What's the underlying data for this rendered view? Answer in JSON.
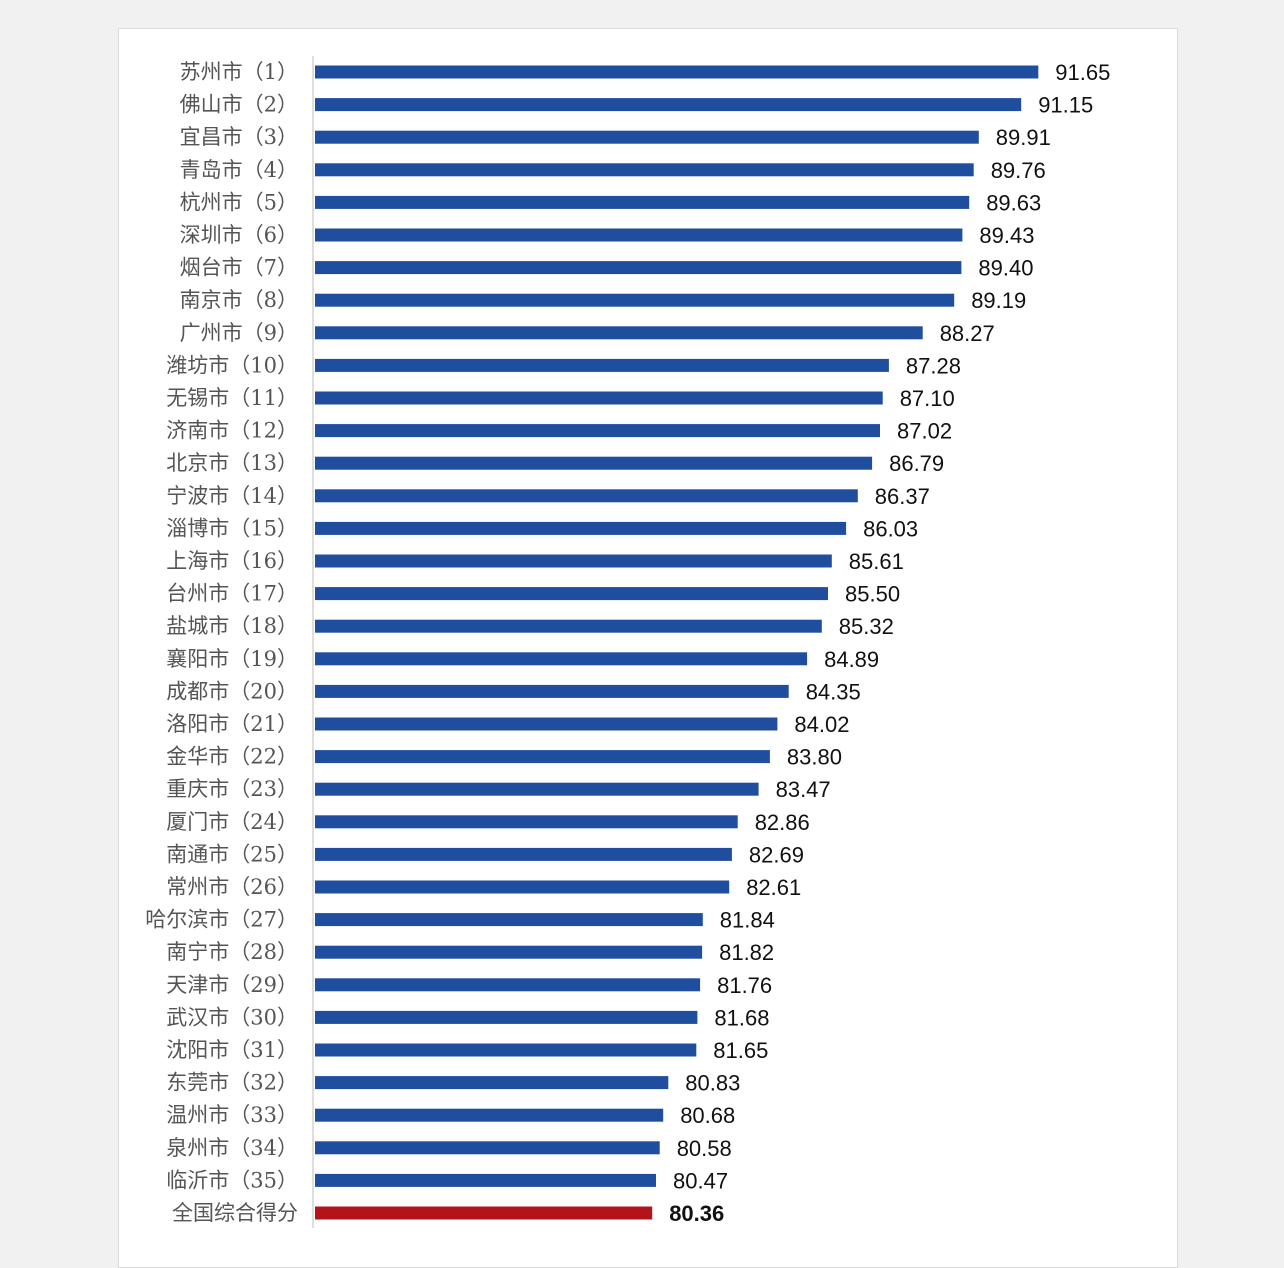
{
  "chart_data": {
    "type": "bar",
    "orientation": "horizontal",
    "title": "",
    "xlabel": "",
    "ylabel": "",
    "grid": false,
    "legend": "none",
    "categories": [
      "苏州市（1）",
      "佛山市（2）",
      "宜昌市（3）",
      "青岛市（4）",
      "杭州市（5）",
      "深圳市（6）",
      "烟台市（7）",
      "南京市（8）",
      "广州市（9）",
      "潍坊市（10）",
      "无锡市（11）",
      "济南市（12）",
      "北京市（13）",
      "宁波市（14）",
      "淄博市（15）",
      "上海市（16）",
      "台州市（17）",
      "盐城市（18）",
      "襄阳市（19）",
      "成都市（20）",
      "洛阳市（21）",
      "金华市（22）",
      "重庆市（23）",
      "厦门市（24）",
      "南通市（25）",
      "常州市（26）",
      "哈尔滨市（27）",
      "南宁市（28）",
      "天津市（29）",
      "武汉市（30）",
      "沈阳市（31）",
      "东莞市（32）",
      "温州市（33）",
      "泉州市（34）",
      "临沂市（35）",
      "全国综合得分"
    ],
    "values": [
      91.65,
      91.15,
      89.91,
      89.76,
      89.63,
      89.43,
      89.4,
      89.19,
      88.27,
      87.28,
      87.1,
      87.02,
      86.79,
      86.37,
      86.03,
      85.61,
      85.5,
      85.32,
      84.89,
      84.35,
      84.02,
      83.8,
      83.47,
      82.86,
      82.69,
      82.61,
      81.84,
      81.82,
      81.76,
      81.68,
      81.65,
      80.83,
      80.68,
      80.58,
      80.47,
      80.36
    ],
    "value_labels": [
      "91.65",
      "91.15",
      "89.91",
      "89.76",
      "89.63",
      "89.43",
      "89.40",
      "89.19",
      "88.27",
      "87.28",
      "87.10",
      "87.02",
      "86.79",
      "86.37",
      "86.03",
      "85.61",
      "85.50",
      "85.32",
      "84.89",
      "84.35",
      "84.02",
      "83.80",
      "83.47",
      "82.86",
      "82.69",
      "82.61",
      "81.84",
      "81.82",
      "81.76",
      "81.68",
      "81.65",
      "80.83",
      "80.68",
      "80.58",
      "80.47",
      "80.36"
    ],
    "xlim": [
      70.5,
      91.65
    ],
    "highlight_index": 35,
    "colors": {
      "bar": "#1f4e9e",
      "highlight_bar": "#b3141b",
      "axis": "#bdbdbd"
    }
  }
}
